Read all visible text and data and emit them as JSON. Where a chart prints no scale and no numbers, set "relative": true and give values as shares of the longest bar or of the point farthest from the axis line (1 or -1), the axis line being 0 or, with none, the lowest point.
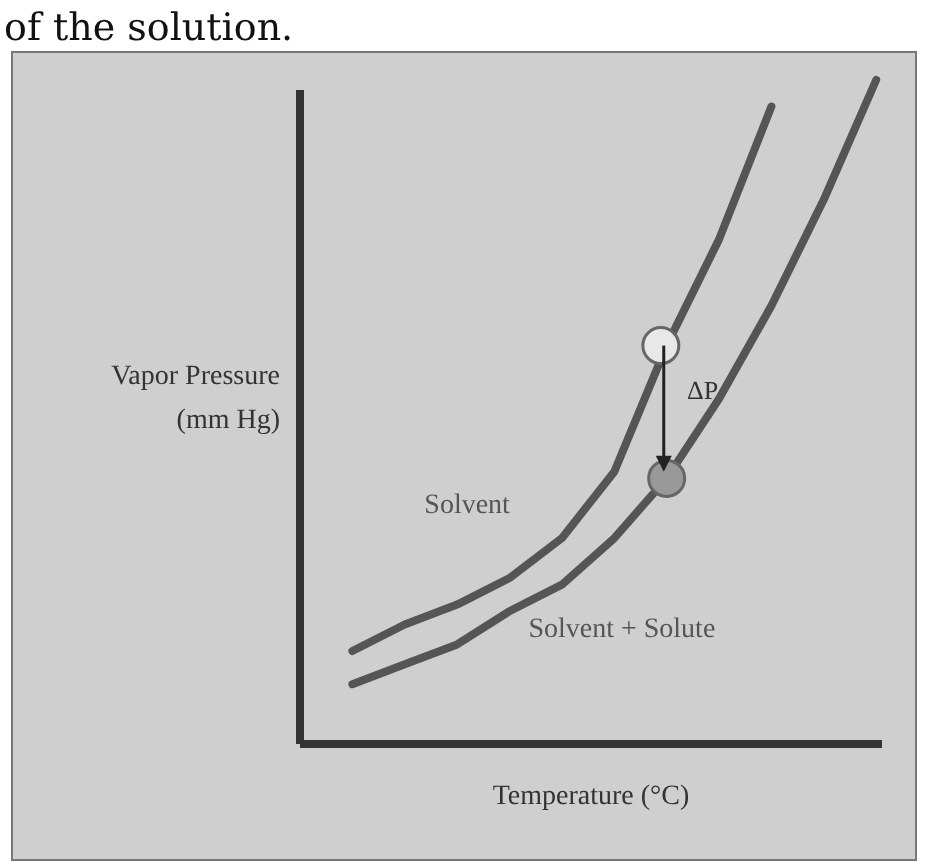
{
  "chart_data": {
    "type": "line",
    "relative": true,
    "title": "of the solution.",
    "xlabel": "Temperature (°C)",
    "ylabel": "Vapor Pressure\n(mm Hg)",
    "annotations": [
      "ΔP"
    ],
    "marker": "none",
    "line_style": "solid",
    "categories": [
      null,
      null,
      null,
      null,
      null,
      null,
      null,
      null,
      null,
      null,
      null
    ],
    "series": [
      {
        "name": "Solvent",
        "color": "#555555",
        "values": [
          0.14,
          0.18,
          0.21,
          0.25,
          0.31,
          0.41,
          0.6,
          0.76,
          0.96,
          null,
          null
        ]
      },
      {
        "name": "Solvent + Solute",
        "color": "#555555",
        "values": [
          0.09,
          0.12,
          0.15,
          0.2,
          0.24,
          0.31,
          0.4,
          0.52,
          0.66,
          0.82,
          1
        ]
      }
    ]
  }
}
